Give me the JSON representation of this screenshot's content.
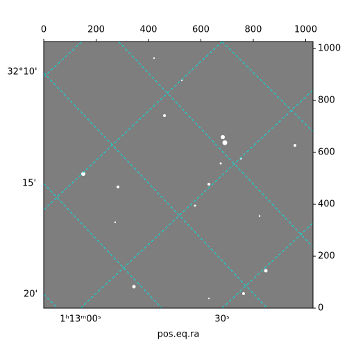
{
  "chart_data": {
    "type": "image",
    "xlabel": "pos.eq.ra",
    "xlim": [
      0,
      1028
    ],
    "xticks": [
      0,
      200,
      400,
      600,
      800,
      1000
    ],
    "ylim": [
      0,
      1027
    ],
    "yticks": [
      0,
      200,
      400,
      600,
      800,
      1000
    ],
    "dec_labels": [
      "32°10'",
      "15'",
      "20'"
    ],
    "ra_labels": [
      "1ʰ13ᵐ00ˢ",
      "30ˢ"
    ]
  }
}
